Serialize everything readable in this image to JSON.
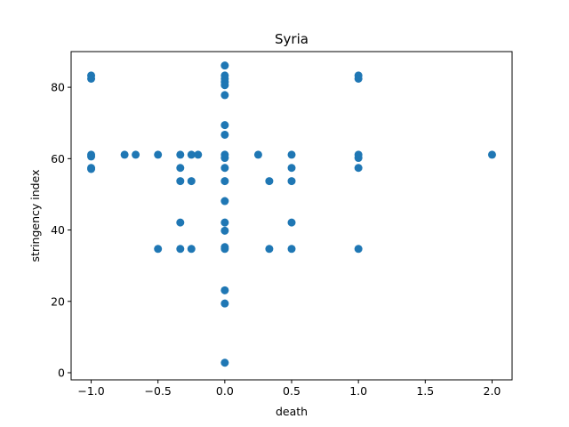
{
  "chart_data": {
    "type": "scatter",
    "title": "Syria",
    "xlabel": "death",
    "ylabel": "stringency index",
    "xlim": [
      -1.15,
      2.15
    ],
    "ylim": [
      -2,
      90
    ],
    "xticks": [
      -1.0,
      -0.5,
      0.0,
      0.5,
      1.0,
      1.5,
      2.0
    ],
    "xtick_labels": [
      "−1.0",
      "−0.5",
      "0.0",
      "0.5",
      "1.0",
      "1.5",
      "2.0"
    ],
    "yticks": [
      0,
      20,
      40,
      60,
      80
    ],
    "ytick_labels": [
      "0",
      "20",
      "40",
      "60",
      "80"
    ],
    "grid": false,
    "marker_color": "#1f77b4",
    "series": [
      {
        "points": [
          {
            "x": -1.0,
            "y": 83.3
          },
          {
            "x": -1.0,
            "y": 82.4
          },
          {
            "x": -1.0,
            "y": 61.1
          },
          {
            "x": -1.0,
            "y": 60.6
          },
          {
            "x": -1.0,
            "y": 57.4
          },
          {
            "x": -1.0,
            "y": 57.1
          },
          {
            "x": -0.75,
            "y": 61.1
          },
          {
            "x": -0.667,
            "y": 61.1
          },
          {
            "x": -0.5,
            "y": 61.1
          },
          {
            "x": -0.5,
            "y": 34.7
          },
          {
            "x": -0.333,
            "y": 61.1
          },
          {
            "x": -0.333,
            "y": 57.4
          },
          {
            "x": -0.333,
            "y": 53.7
          },
          {
            "x": -0.333,
            "y": 42.1
          },
          {
            "x": -0.333,
            "y": 34.7
          },
          {
            "x": -0.25,
            "y": 61.1
          },
          {
            "x": -0.25,
            "y": 53.7
          },
          {
            "x": -0.25,
            "y": 34.7
          },
          {
            "x": -0.2,
            "y": 61.1
          },
          {
            "x": 0.0,
            "y": 86.1
          },
          {
            "x": 0.0,
            "y": 83.3
          },
          {
            "x": 0.0,
            "y": 82.4
          },
          {
            "x": 0.0,
            "y": 81.5
          },
          {
            "x": 0.0,
            "y": 80.6
          },
          {
            "x": 0.0,
            "y": 77.8
          },
          {
            "x": 0.0,
            "y": 69.4
          },
          {
            "x": 0.0,
            "y": 66.7
          },
          {
            "x": 0.0,
            "y": 61.1
          },
          {
            "x": 0.0,
            "y": 60.2
          },
          {
            "x": 0.0,
            "y": 57.4
          },
          {
            "x": 0.0,
            "y": 53.7
          },
          {
            "x": 0.0,
            "y": 48.1
          },
          {
            "x": 0.0,
            "y": 42.1
          },
          {
            "x": 0.0,
            "y": 39.8
          },
          {
            "x": 0.0,
            "y": 35.2
          },
          {
            "x": 0.0,
            "y": 34.7
          },
          {
            "x": 0.0,
            "y": 23.1
          },
          {
            "x": 0.0,
            "y": 19.4
          },
          {
            "x": 0.0,
            "y": 2.8
          },
          {
            "x": 0.25,
            "y": 61.1
          },
          {
            "x": 0.333,
            "y": 53.7
          },
          {
            "x": 0.333,
            "y": 34.7
          },
          {
            "x": 0.5,
            "y": 61.1
          },
          {
            "x": 0.5,
            "y": 57.4
          },
          {
            "x": 0.5,
            "y": 53.7
          },
          {
            "x": 0.5,
            "y": 42.1
          },
          {
            "x": 0.5,
            "y": 34.7
          },
          {
            "x": 1.0,
            "y": 83.3
          },
          {
            "x": 1.0,
            "y": 82.4
          },
          {
            "x": 1.0,
            "y": 61.1
          },
          {
            "x": 1.0,
            "y": 60.2
          },
          {
            "x": 1.0,
            "y": 57.4
          },
          {
            "x": 1.0,
            "y": 34.7
          },
          {
            "x": 2.0,
            "y": 61.1
          }
        ]
      }
    ]
  }
}
